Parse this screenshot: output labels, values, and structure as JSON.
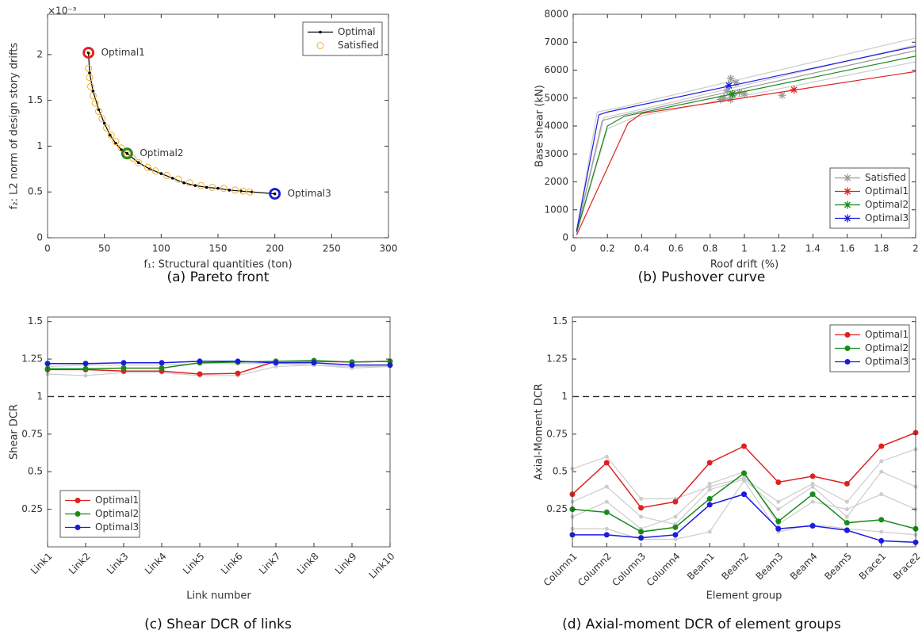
{
  "chart_data": [
    {
      "type": "line",
      "caption": "(a) Pareto front",
      "xlabel": "f₁: Structural quantities (ton)",
      "ylabel": "f₂: L2 norm of design story drifts",
      "y_multiplier": "×10⁻³",
      "xlim": [
        0,
        300
      ],
      "xticks": [
        0,
        50,
        100,
        150,
        200,
        250,
        300
      ],
      "ylim": [
        0,
        2.44
      ],
      "yticks": [
        0,
        0.5,
        1,
        1.5,
        2
      ],
      "legend": "top-right",
      "series": [
        {
          "name": "Optimal",
          "color": "#000000",
          "line": true,
          "marker": "dot",
          "x": [
            36,
            37,
            40,
            45,
            50,
            55,
            60,
            65,
            70,
            80,
            90,
            100,
            110,
            120,
            130,
            140,
            150,
            160,
            170,
            180,
            200
          ],
          "y": [
            2.02,
            1.8,
            1.6,
            1.4,
            1.25,
            1.12,
            1.03,
            0.96,
            0.92,
            0.82,
            0.75,
            0.7,
            0.65,
            0.6,
            0.57,
            0.55,
            0.54,
            0.52,
            0.51,
            0.5,
            0.48
          ]
        },
        {
          "name": "Satisfied",
          "color": "#f0b030",
          "line": false,
          "marker": "circle",
          "x": [
            35,
            36,
            37,
            38,
            40,
            42,
            45,
            48,
            52,
            56,
            60,
            65,
            70,
            75,
            80,
            88,
            95,
            105,
            115,
            125,
            135,
            145,
            155,
            165,
            172,
            178
          ],
          "y": [
            2.0,
            1.85,
            1.75,
            1.65,
            1.55,
            1.47,
            1.38,
            1.3,
            1.2,
            1.12,
            1.05,
            0.98,
            0.92,
            0.87,
            0.82,
            0.77,
            0.73,
            0.68,
            0.64,
            0.6,
            0.57,
            0.55,
            0.54,
            0.52,
            0.51,
            0.5
          ]
        }
      ],
      "annotations": [
        {
          "label": "Optimal1",
          "x": 36,
          "y": 2.02,
          "color": "#e02020"
        },
        {
          "label": "Optimal2",
          "x": 70,
          "y": 0.92,
          "color": "#1a8a1a"
        },
        {
          "label": "Optimal3",
          "x": 200,
          "y": 0.48,
          "color": "#1a1ae0"
        }
      ]
    },
    {
      "type": "line",
      "caption": "(b) Pushover curve",
      "xlabel": "Roof drift (%)",
      "ylabel": "Base shear (kN)",
      "xlim": [
        0,
        2
      ],
      "xticks": [
        0,
        0.2,
        0.4,
        0.6,
        0.8,
        1,
        1.2,
        1.4,
        1.6,
        1.8,
        2
      ],
      "ylim": [
        0,
        8000
      ],
      "yticks": [
        0,
        1000,
        2000,
        3000,
        4000,
        5000,
        6000,
        7000,
        8000
      ],
      "legend": "bottom-right",
      "background": {
        "color": "#cccccc",
        "series": [
          {
            "x": [
              0.02,
              0.14,
              0.3,
              2
            ],
            "y": [
              250,
              4500,
              4700,
              7150
            ]
          },
          {
            "x": [
              0.02,
              0.2,
              0.35,
              2
            ],
            "y": [
              150,
              3900,
              4300,
              6300
            ]
          },
          {
            "x": [
              0.02,
              0.18,
              0.4,
              2
            ],
            "y": [
              200,
              4300,
              4600,
              6900
            ]
          }
        ]
      },
      "series": [
        {
          "name": "Satisfied",
          "color": "#999999",
          "line": true,
          "marker": "star",
          "x": [
            0.02,
            0.17,
            0.3,
            2
          ],
          "y": [
            200,
            4200,
            4400,
            6700
          ],
          "marker_x": [
            0.88,
            0.9,
            0.92,
            0.93,
            0.95,
            0.97,
            1.0,
            1.22,
            0.86,
            0.92
          ],
          "marker_y": [
            5000,
            5250,
            5700,
            5100,
            5550,
            5200,
            5150,
            5100,
            4950,
            4950
          ]
        },
        {
          "name": "Optimal1",
          "color": "#e02020",
          "line": true,
          "marker": "star",
          "x": [
            0.02,
            0.32,
            0.4,
            2
          ],
          "y": [
            100,
            4100,
            4450,
            5950
          ],
          "marker_x": [
            1.29
          ],
          "marker_y": [
            5300
          ]
        },
        {
          "name": "Optimal2",
          "color": "#1a8a1a",
          "line": true,
          "marker": "star",
          "x": [
            0.02,
            0.2,
            0.3,
            2
          ],
          "y": [
            200,
            4000,
            4350,
            6500
          ],
          "marker_x": [
            0.93
          ],
          "marker_y": [
            5150
          ]
        },
        {
          "name": "Optimal3",
          "color": "#1a1ae0",
          "line": true,
          "marker": "star",
          "x": [
            0.02,
            0.15,
            0.2,
            2
          ],
          "y": [
            250,
            4400,
            4500,
            6850
          ],
          "marker_x": [
            0.91
          ],
          "marker_y": [
            5450
          ]
        }
      ]
    },
    {
      "type": "line",
      "caption": "(c) Shear DCR of links",
      "xlabel": "Link number",
      "ylabel": "Shear DCR",
      "categories": [
        "Link1",
        "Link2",
        "Link3",
        "Link4",
        "Link5",
        "Link6",
        "Link7",
        "Link8",
        "Link9",
        "Link10"
      ],
      "ylim": [
        0,
        1.53
      ],
      "yticks": [
        0.25,
        0.5,
        0.75,
        1,
        1.25,
        1.5
      ],
      "reference_line": 1,
      "legend": "bottom-left",
      "background": {
        "color": "#cccccc",
        "series": [
          {
            "values": [
              1.15,
              1.14,
              1.16,
              1.16,
              1.14,
              1.14,
              1.2,
              1.21,
              1.19,
              1.2
            ]
          },
          {
            "values": [
              1.2,
              1.21,
              1.21,
              1.21,
              1.22,
              1.22,
              1.22,
              1.21,
              1.2,
              1.2
            ]
          }
        ]
      },
      "series": [
        {
          "name": "Optimal1",
          "color": "#e02020",
          "line": true,
          "marker": "filled",
          "values": [
            1.18,
            1.18,
            1.17,
            1.17,
            1.15,
            1.155,
            1.235,
            1.235,
            1.23,
            1.235
          ]
        },
        {
          "name": "Optimal2",
          "color": "#1a8a1a",
          "line": true,
          "marker": "filled",
          "values": [
            1.185,
            1.185,
            1.19,
            1.19,
            1.225,
            1.23,
            1.235,
            1.24,
            1.23,
            1.235
          ]
        },
        {
          "name": "Optimal3",
          "color": "#1a1ae0",
          "line": true,
          "marker": "filled",
          "values": [
            1.22,
            1.22,
            1.225,
            1.225,
            1.235,
            1.235,
            1.225,
            1.225,
            1.21,
            1.21
          ]
        }
      ]
    },
    {
      "type": "line",
      "caption": "(d) Axial-moment DCR of element groups",
      "xlabel": "Element group",
      "ylabel": "Axial-Moment DCR",
      "categories": [
        "Column1",
        "Column2",
        "Column3",
        "Column4",
        "Beam1",
        "Beam2",
        "Beam3",
        "Beam4",
        "Beam5",
        "Brace1",
        "Brace2"
      ],
      "ylim": [
        0,
        1.53
      ],
      "yticks": [
        0.25,
        0.5,
        0.75,
        1,
        1.25,
        1.5
      ],
      "reference_line": 1,
      "legend": "top-right",
      "background": {
        "color": "#cccccc",
        "series": [
          {
            "values": [
              0.52,
              0.6,
              0.32,
              0.32,
              0.4,
              0.46,
              0.3,
              0.42,
              0.3,
              0.57,
              0.65
            ]
          },
          {
            "values": [
              0.3,
              0.4,
              0.2,
              0.15,
              0.38,
              0.45,
              0.25,
              0.4,
              0.2,
              0.5,
              0.4
            ]
          },
          {
            "values": [
              0.12,
              0.12,
              0.05,
              0.05,
              0.1,
              0.44,
              0.1,
              0.15,
              0.12,
              0.1,
              0.08
            ]
          },
          {
            "values": [
              0.2,
              0.3,
              0.12,
              0.2,
              0.42,
              0.5,
              0.15,
              0.3,
              0.25,
              0.35,
              0.25
            ]
          }
        ]
      },
      "series": [
        {
          "name": "Optimal1",
          "color": "#e02020",
          "line": true,
          "marker": "filled",
          "values": [
            0.35,
            0.56,
            0.26,
            0.3,
            0.56,
            0.67,
            0.43,
            0.47,
            0.42,
            0.67,
            0.76
          ]
        },
        {
          "name": "Optimal2",
          "color": "#1a8a1a",
          "line": true,
          "marker": "filled",
          "values": [
            0.25,
            0.23,
            0.1,
            0.13,
            0.32,
            0.49,
            0.17,
            0.35,
            0.16,
            0.18,
            0.12
          ]
        },
        {
          "name": "Optimal3",
          "color": "#1a1ae0",
          "line": true,
          "marker": "filled",
          "values": [
            0.08,
            0.08,
            0.06,
            0.08,
            0.28,
            0.35,
            0.12,
            0.14,
            0.11,
            0.04,
            0.03
          ]
        }
      ]
    }
  ]
}
